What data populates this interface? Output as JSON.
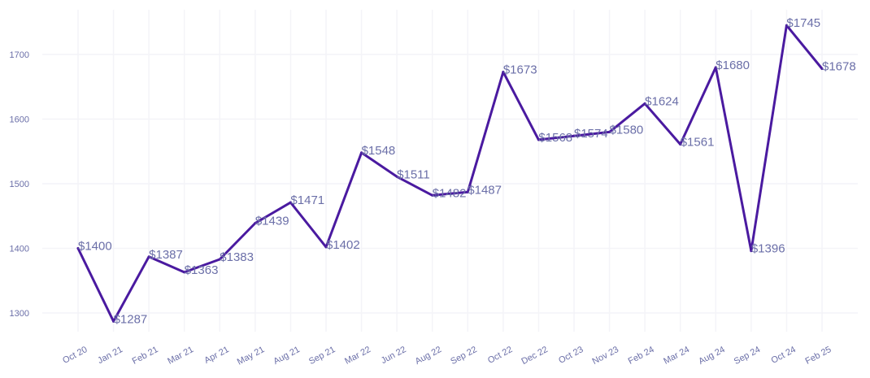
{
  "chart_data": {
    "type": "line",
    "categories": [
      "Oct 20",
      "Jan 21",
      "Feb 21",
      "Mar 21",
      "Apr 21",
      "May 21",
      "Aug 21",
      "Sep 21",
      "Mar 22",
      "Jun 22",
      "Aug 22",
      "Sep 22",
      "Oct 22",
      "Dec 22",
      "Oct 23",
      "Nov 23",
      "Feb 24",
      "Mar 24",
      "Aug 24",
      "Sep 24",
      "Oct 24",
      "Feb 25"
    ],
    "series": [
      {
        "values": [
          1400,
          1287,
          1387,
          1363,
          1383,
          1439,
          1471,
          1402,
          1548,
          1511,
          1482,
          1487,
          1673,
          1568,
          1574,
          1580,
          1624,
          1561,
          1680,
          1396,
          1745,
          1678
        ]
      }
    ],
    "data_labels": [
      "$1400",
      "$1287",
      "$1387",
      "$1363",
      "$1383",
      "$1439",
      "$1471",
      "$1402",
      "$1548",
      "$1511",
      "$1482",
      "$1487",
      "$1673",
      "$1568",
      "$1574",
      "$1580",
      "$1624",
      "$1561",
      "$1680",
      "$1396",
      "$1745",
      "$1678"
    ],
    "yticks": [
      1300,
      1400,
      1500,
      1600,
      1700
    ],
    "ylim": [
      1255,
      1765
    ],
    "grid": true,
    "line_color": "#4a1aa0",
    "label_color": "#6b6fa8"
  }
}
